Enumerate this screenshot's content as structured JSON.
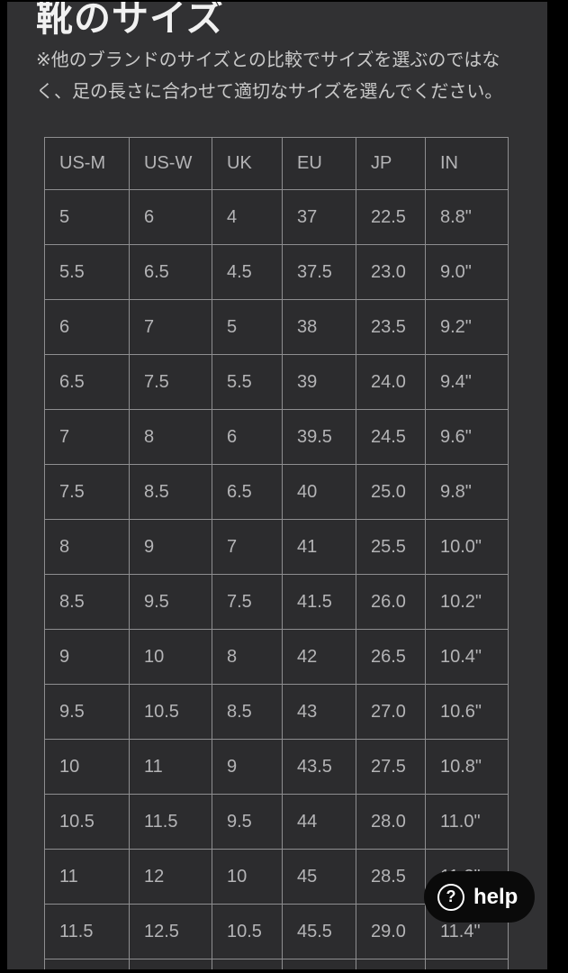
{
  "page": {
    "title": "靴のサイズ",
    "note": "※他のブランドのサイズとの比較でサイズを選ぶのではなく、足の長さに合わせて適切なサイズを選んでください。"
  },
  "table": {
    "columns": [
      "US-M",
      "US-W",
      "UK",
      "EU",
      "JP",
      "IN"
    ],
    "rows": [
      [
        "5",
        "6",
        "4",
        "37",
        "22.5",
        "8.8\""
      ],
      [
        "5.5",
        "6.5",
        "4.5",
        "37.5",
        "23.0",
        "9.0\""
      ],
      [
        "6",
        "7",
        "5",
        "38",
        "23.5",
        "9.2\""
      ],
      [
        "6.5",
        "7.5",
        "5.5",
        "39",
        "24.0",
        "9.4\""
      ],
      [
        "7",
        "8",
        "6",
        "39.5",
        "24.5",
        "9.6\""
      ],
      [
        "7.5",
        "8.5",
        "6.5",
        "40",
        "25.0",
        "9.8\""
      ],
      [
        "8",
        "9",
        "7",
        "41",
        "25.5",
        "10.0\""
      ],
      [
        "8.5",
        "9.5",
        "7.5",
        "41.5",
        "26.0",
        "10.2\""
      ],
      [
        "9",
        "10",
        "8",
        "42",
        "26.5",
        "10.4\""
      ],
      [
        "9.5",
        "10.5",
        "8.5",
        "43",
        "27.0",
        "10.6\""
      ],
      [
        "10",
        "11",
        "9",
        "43.5",
        "27.5",
        "10.8\""
      ],
      [
        "10.5",
        "11.5",
        "9.5",
        "44",
        "28.0",
        "11.0\""
      ],
      [
        "11",
        "12",
        "10",
        "45",
        "28.5",
        "11.2\""
      ],
      [
        "11.5",
        "12.5",
        "10.5",
        "45.5",
        "29.0",
        "11.4\""
      ],
      [
        "",
        "",
        "",
        "",
        "",
        ""
      ]
    ]
  },
  "help_button": {
    "label": "help",
    "icon": "question-mark-icon",
    "icon_glyph": "?"
  },
  "colors": {
    "frame": "#000000",
    "page_background": "#313133",
    "cell_background": "#2c2c2e",
    "table_border": "#8e8e90",
    "cell_text": "#b4b4b6",
    "title_text": "#f1f1f1",
    "note_text": "#c9c9c9",
    "help_background": "#0a0a0a",
    "help_text": "#ffffff"
  }
}
